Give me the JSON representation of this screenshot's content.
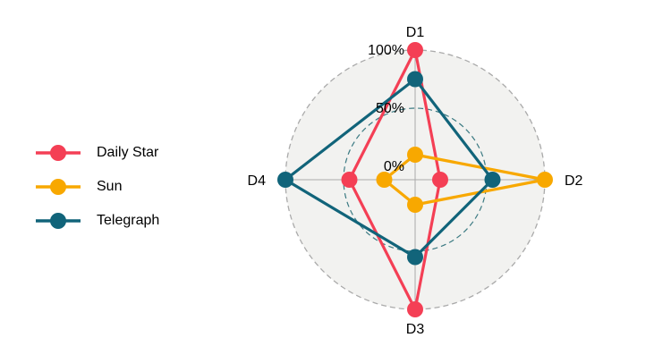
{
  "chart_data": {
    "type": "radar",
    "title": "",
    "axes": [
      "D1",
      "D2",
      "D3",
      "D4"
    ],
    "grid_labels": [
      "0%",
      "50%",
      "100%"
    ],
    "range": [
      0,
      100
    ],
    "legend_position": "left",
    "series": [
      {
        "name": "Daily Star",
        "color": "#f43f55",
        "values": [
          100,
          10,
          100,
          45
        ]
      },
      {
        "name": "Sun",
        "color": "#f8a800",
        "values": [
          10,
          100,
          10,
          15
        ]
      },
      {
        "name": "Telegraph",
        "color": "#11647a",
        "values": [
          75,
          55,
          55,
          100
        ]
      }
    ]
  },
  "colors": {
    "background_circle": "#f2f2f0",
    "outer_ring": "#aaaaaa",
    "mid_ring": "#3b7a82",
    "axis_line": "#aaaaaa"
  }
}
